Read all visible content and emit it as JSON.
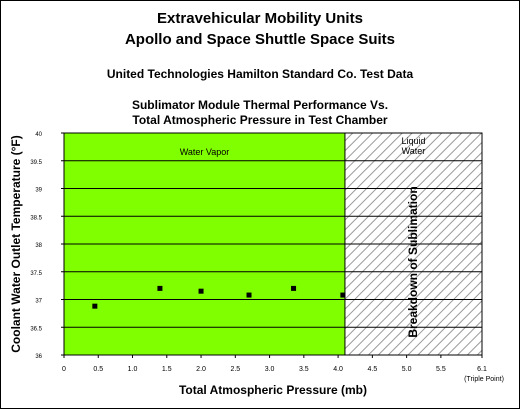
{
  "colors": {
    "vapor_region": "#80ff00",
    "liquid_hatch": "#9a9a9a",
    "marker": "#000000",
    "gridline": "#000000"
  },
  "chart_data": {
    "type": "scatter",
    "title": [
      "Extravehicular Mobility Units",
      "Apollo and Space Shuttle Space Suits",
      "United Technologies Hamilton Standard Co. Test Data",
      "Sublimator Module Thermal Performance Vs.",
      "Total Atmospheric Pressure in Test Chamber"
    ],
    "xlabel": "Total Atmospheric Pressure (mb)",
    "ylabel": "Coolant Water Outlet Temperature (°F)",
    "xlim": [
      0,
      6.1
    ],
    "ylim": [
      36,
      40
    ],
    "x_ticks": [
      0,
      0.5,
      1.0,
      1.5,
      2.0,
      2.5,
      3.0,
      3.5,
      4.0,
      4.5,
      5.0,
      5.5,
      6.1
    ],
    "x_tick_labels": [
      "0",
      "0.5",
      "1.0",
      "1.5",
      "2.0",
      "2.5",
      "3.0",
      "3.5",
      "4.0",
      "4.5",
      "5.0",
      "5.5",
      "6.1"
    ],
    "x_tick_note": "(Triple Point)",
    "y_ticks": [
      36,
      36.5,
      37,
      37.5,
      38,
      38.5,
      39,
      39.5,
      40
    ],
    "y_tick_labels": [
      "36",
      "36.5",
      "37",
      "37.5",
      "38",
      "38.5",
      "39",
      "39.5",
      "40"
    ],
    "grid": "horizontal",
    "regions": [
      {
        "label": "Water Vapor",
        "x_from": 0,
        "x_to": 4.1,
        "style": "solid"
      },
      {
        "label": "Liquid Water",
        "x_from": 4.1,
        "x_to": 6.1,
        "style": "hatched"
      }
    ],
    "annotations": [
      {
        "text": "Breakdown of Sublimation",
        "orientation": "vertical"
      }
    ],
    "x": [
      0.45,
      1.4,
      2.0,
      2.7,
      3.35,
      4.07
    ],
    "y": [
      36.88,
      37.2,
      37.15,
      37.08,
      37.2,
      37.08
    ]
  }
}
